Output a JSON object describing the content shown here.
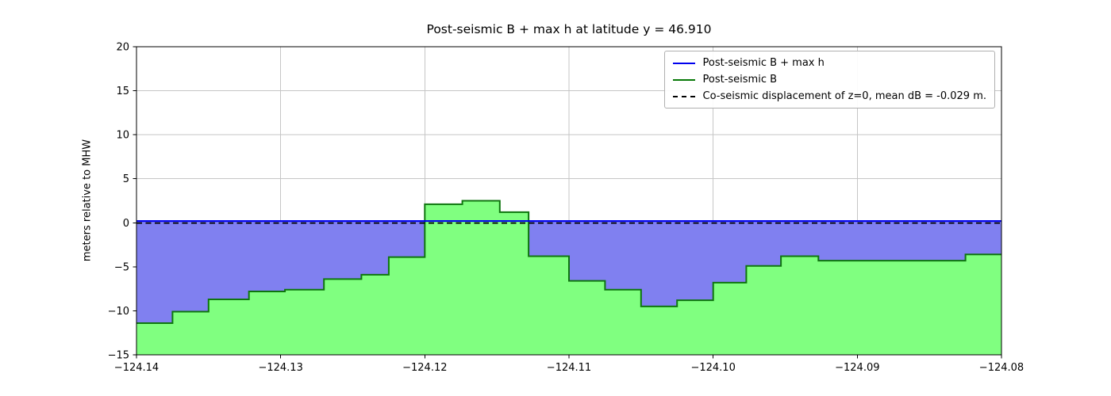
{
  "figure": {
    "title": "Post-seismic B + max h at latitude y = 46.910",
    "ylabel": "meters relative to MHW"
  },
  "legend": {
    "items": [
      {
        "label": "Post-seismic B + max h",
        "color": "#0000ee",
        "style": "solid"
      },
      {
        "label": "Post-seismic B",
        "color": "#067806",
        "style": "solid"
      },
      {
        "label": "Co-seismic displacement of z=0, mean dB = -0.029 m.",
        "color": "#000000",
        "style": "dashed"
      }
    ]
  },
  "chart_data": {
    "type": "area",
    "title": "Post-seismic B + max h at latitude y = 46.910",
    "xlabel": "",
    "ylabel": "meters relative to MHW",
    "xlim": [
      -124.14,
      -124.08
    ],
    "ylim": [
      -15,
      20
    ],
    "grid": true,
    "legend_position": "upper right",
    "x_tick_values": [
      -124.14,
      -124.13,
      -124.12,
      -124.11,
      -124.1,
      -124.09,
      -124.08
    ],
    "x_tick_labels": [
      "−124.14",
      "−124.13",
      "−124.12",
      "−124.11",
      "−124.10",
      "−124.09",
      "−124.08"
    ],
    "y_tick_values": [
      -15,
      -10,
      -5,
      0,
      5,
      10,
      15,
      20
    ],
    "y_tick_labels": [
      "−15",
      "−10",
      "−5",
      "0",
      "5",
      "10",
      "15",
      "20"
    ],
    "series": [
      {
        "name": "Post-seismic B + max h",
        "type": "hline",
        "y": 0.2,
        "line_color": "#0000ee",
        "line_style": "solid",
        "fill_color": "#8080f0",
        "fill_to": "Post-seismic B"
      },
      {
        "name": "Post-seismic B",
        "type": "step",
        "edges": [
          -124.14,
          -124.1375,
          -124.135,
          -124.1322,
          -124.1297,
          -124.127,
          -124.1244,
          -124.1225,
          -124.12,
          -124.1174,
          -124.1148,
          -124.1128,
          -124.11,
          -124.1075,
          -124.105,
          -124.1025,
          -124.1,
          -124.0977,
          -124.0953,
          -124.0927,
          -124.0825,
          -124.08
        ],
        "values": [
          -11.4,
          -10.1,
          -8.7,
          -7.8,
          -7.6,
          -6.4,
          -5.9,
          -3.9,
          2.1,
          2.5,
          1.2,
          -3.8,
          -6.6,
          -7.6,
          -9.5,
          -8.8,
          -6.8,
          -4.9,
          -3.8,
          -4.3,
          -3.6
        ],
        "line_color": "#0e750e",
        "line_style": "solid",
        "fill_color": "#80ff80",
        "fill_to": "bottom"
      },
      {
        "name": "Co-seismic displacement of z=0, mean dB = -0.029 m.",
        "type": "hline",
        "y": -0.029,
        "line_color": "#000000",
        "line_style": "dashed"
      }
    ]
  }
}
